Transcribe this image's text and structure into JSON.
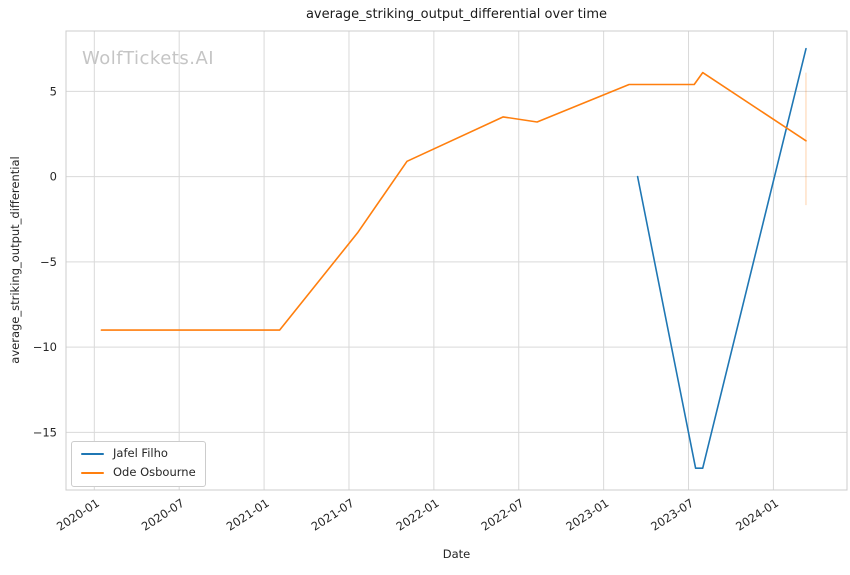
{
  "chart_data": {
    "type": "line",
    "title": "average_striking_output_differential over time",
    "xlabel": "Date",
    "ylabel": "average_striking_output_differential",
    "watermark": "WolfTickets.AI",
    "grid": true,
    "legend_position": "lower left",
    "colors": {
      "grid": "#d9d9d9",
      "spine": "#cccccc",
      "tick_text": "#262626",
      "title_text": "#1a1a1a",
      "watermark_text": "#c5c5c5",
      "background": "#ffffff"
    },
    "x_axis": {
      "min_m": -2.0,
      "max_m": 53.2,
      "ticks": [
        {
          "label": "2020-01",
          "m": 0
        },
        {
          "label": "2020-07",
          "m": 6
        },
        {
          "label": "2021-01",
          "m": 12
        },
        {
          "label": "2021-07",
          "m": 18
        },
        {
          "label": "2022-01",
          "m": 24
        },
        {
          "label": "2022-07",
          "m": 30
        },
        {
          "label": "2023-01",
          "m": 36
        },
        {
          "label": "2023-07",
          "m": 42
        },
        {
          "label": "2024-01",
          "m": 48
        }
      ]
    },
    "y_axis": {
      "min": -18.38,
      "max": 8.54,
      "ticks": [
        {
          "label": "5",
          "v": 5
        },
        {
          "label": "0",
          "v": 0
        },
        {
          "label": "−5",
          "v": -5
        },
        {
          "label": "−10",
          "v": -10
        },
        {
          "label": "−15",
          "v": -15
        }
      ]
    },
    "series": [
      {
        "name": "Jafel Filho",
        "color": "#1f77b4",
        "points": [
          {
            "date": "2023-03",
            "m": 38.4,
            "value": 0.0
          },
          {
            "date": "2023-07",
            "m": 42.5,
            "value": -17.1
          },
          {
            "date": "2023-08",
            "m": 43.0,
            "value": -17.1
          },
          {
            "date": "2024-03",
            "m": 50.3,
            "value": 7.5
          }
        ]
      },
      {
        "name": "Ode Osbourne",
        "color": "#ff7f0e",
        "points": [
          {
            "date": "2020-01",
            "m": 0.5,
            "value": -9.0
          },
          {
            "date": "2021-02",
            "m": 13.1,
            "value": -9.0
          },
          {
            "date": "2021-07",
            "m": 18.6,
            "value": -3.3
          },
          {
            "date": "2021-11",
            "m": 22.1,
            "value": 0.9
          },
          {
            "date": "2022-06",
            "m": 28.9,
            "value": 3.5
          },
          {
            "date": "2022-08",
            "m": 31.3,
            "value": 3.2
          },
          {
            "date": "2023-03",
            "m": 37.8,
            "value": 5.4
          },
          {
            "date": "2023-07",
            "m": 42.4,
            "value": 5.4
          },
          {
            "date": "2023-08",
            "m": 43.0,
            "value": 6.1
          },
          {
            "date": "2024-03",
            "m": 50.3,
            "value": 2.1
          }
        ]
      }
    ],
    "annotations": [
      {
        "type": "vline",
        "m": 50.3,
        "v_top": 6.1,
        "v_bottom": -1.67,
        "color": "#ff7f0e",
        "opacity": 0.35
      }
    ]
  }
}
